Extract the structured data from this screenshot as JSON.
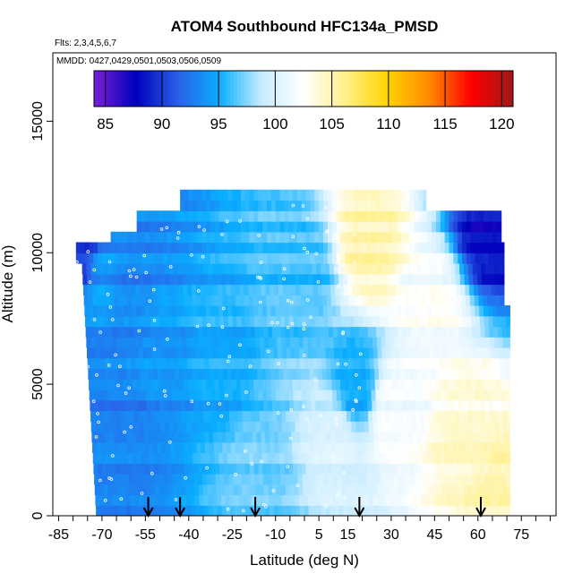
{
  "chart_data": {
    "type": "heatmap",
    "title": "ATOM4 Southbound HFC134a_PMSD",
    "subtitle_flights": "Flts: 2,3,4,5,6,7",
    "subtitle_dates": "MMDD: 0427,0429,0501,0503,0506,0509",
    "xlabel": "Latitude (deg N)",
    "ylabel": "Altitude (m)",
    "xlim": [
      -87,
      87
    ],
    "ylim": [
      0,
      17600
    ],
    "x_ticks": [
      -85,
      -70,
      -55,
      -40,
      -25,
      -10,
      5,
      15,
      30,
      45,
      60,
      75
    ],
    "x_tick_labels": [
      "-85",
      "-70",
      "-55",
      "-40",
      "-25",
      "-10",
      "5",
      "15",
      "30",
      "45",
      "60",
      "75"
    ],
    "x_minor_step": 5,
    "y_ticks": [
      0,
      5000,
      10000,
      15000
    ],
    "y_tick_labels": [
      "0",
      "5000",
      "10000",
      "15000"
    ],
    "colorbar": {
      "min": 84,
      "max": 121,
      "ticks": [
        85,
        90,
        95,
        100,
        105,
        110,
        115,
        120
      ],
      "tick_labels": [
        "85",
        "90",
        "95",
        "100",
        "105",
        "110",
        "115",
        "120"
      ],
      "colors": [
        "#7a1fd8",
        "#0000bb",
        "#2a60e8",
        "#0aaeff",
        "#c8ecff",
        "#ffffff",
        "#fff08a",
        "#ffd400",
        "#ff8a00",
        "#ff0000",
        "#a01818"
      ]
    },
    "colorbar_position": "top",
    "profile_markers_lat": [
      -54,
      -43,
      -17,
      19,
      61
    ],
    "value_field": [
      {
        "lat": -77,
        "alt": 10000,
        "value": 90
      },
      {
        "lat": -70,
        "alt": 9000,
        "value": 94
      },
      {
        "lat": -62,
        "alt": 8000,
        "value": 93
      },
      {
        "lat": -60,
        "alt": 3000,
        "value": 93
      },
      {
        "lat": -50,
        "alt": 6000,
        "value": 94
      },
      {
        "lat": -30,
        "alt": 6000,
        "value": 95
      },
      {
        "lat": -15,
        "alt": 1500,
        "value": 97
      },
      {
        "lat": 0,
        "alt": 9000,
        "value": 96
      },
      {
        "lat": 10,
        "alt": 3000,
        "value": 100
      },
      {
        "lat": 18,
        "alt": 5000,
        "value": 95
      },
      {
        "lat": 22,
        "alt": 10500,
        "value": 105
      },
      {
        "lat": 30,
        "alt": 4000,
        "value": 102
      },
      {
        "lat": 45,
        "alt": 8000,
        "value": 102
      },
      {
        "lat": 55,
        "alt": 3000,
        "value": 104
      },
      {
        "lat": 63,
        "alt": 11000,
        "value": 88
      },
      {
        "lat": 66,
        "alt": 500,
        "value": 105
      }
    ]
  }
}
